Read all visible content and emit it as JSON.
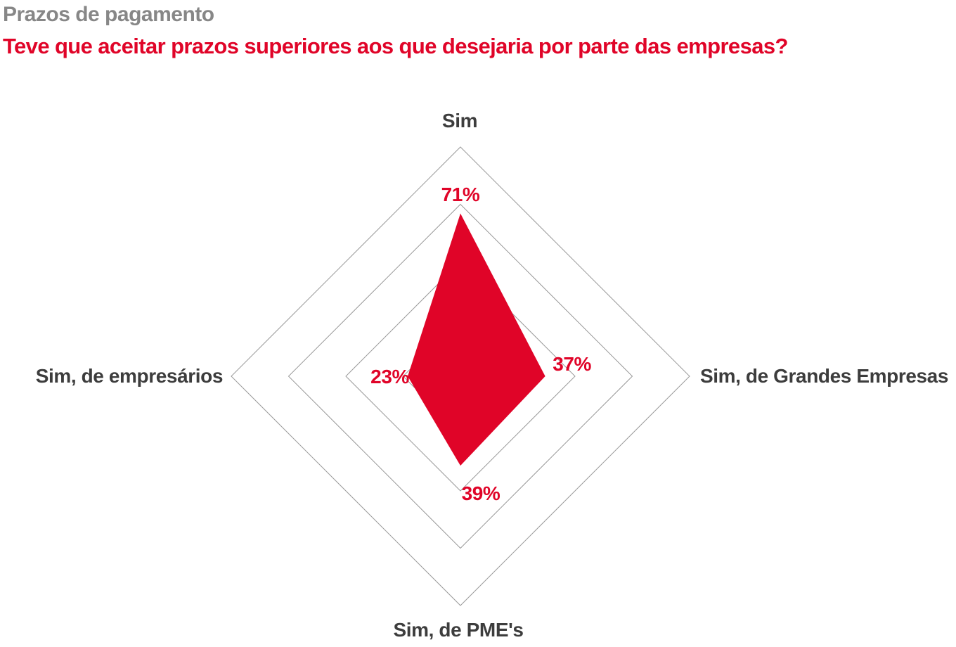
{
  "header": {
    "kicker": "Prazos de pagamento",
    "title": "Teve que aceitar prazos superiores aos que desejaria por parte das empresas?"
  },
  "chart_data": {
    "type": "radar",
    "axes": [
      {
        "label": "Sim",
        "value": 71,
        "value_label": "71%"
      },
      {
        "label": "Sim, de Grandes Empresas",
        "value": 37,
        "value_label": "37%"
      },
      {
        "label": "Sim, de PME's",
        "value": 39,
        "value_label": "39%"
      },
      {
        "label": "Sim, de empresários",
        "value": 23,
        "value_label": "23%"
      }
    ],
    "max": 100,
    "rings_percent": [
      25,
      50,
      75,
      100
    ],
    "grid": true,
    "legend": "none",
    "series_color": "#e00428",
    "grid_color": "#9a9a9a",
    "value_label_color": "#e00428",
    "axis_label_color": "#3d3d3d",
    "kicker_color": "#878787",
    "title_color": "#e00428"
  }
}
